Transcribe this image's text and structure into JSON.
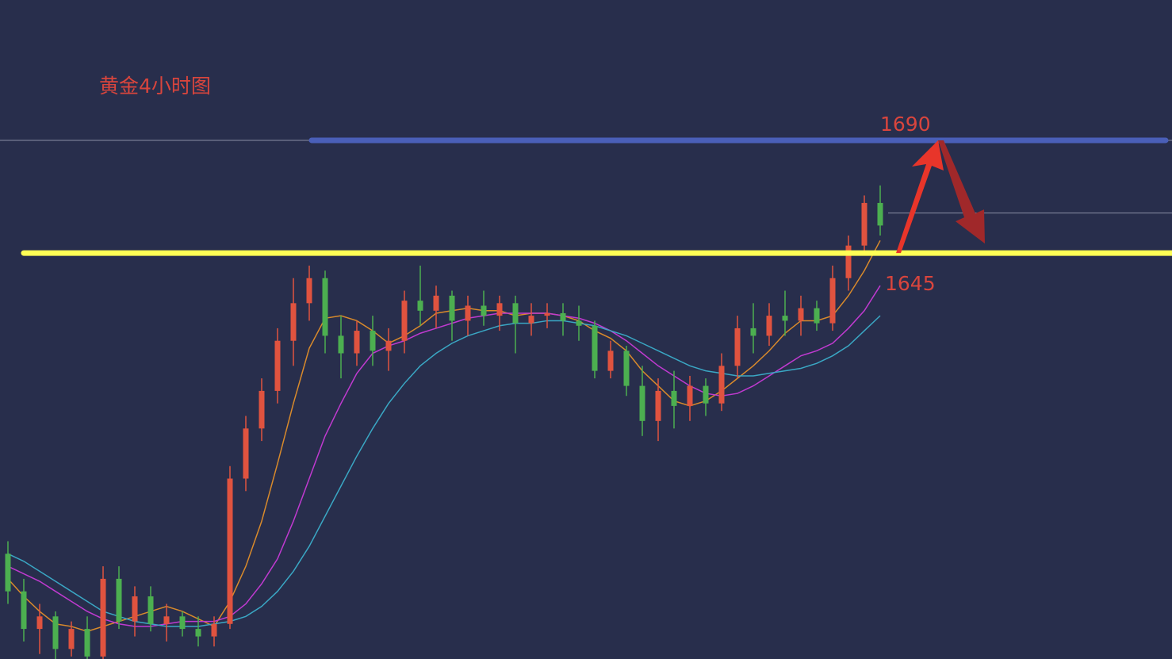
{
  "chart_data": {
    "type": "candlestick",
    "title": "黄金4小时图",
    "ohlc": [
      [
        1525,
        1530,
        1505,
        1510
      ],
      [
        1510,
        1515,
        1490,
        1495
      ],
      [
        1495,
        1505,
        1485,
        1500
      ],
      [
        1500,
        1502,
        1483,
        1487
      ],
      [
        1487,
        1498,
        1484,
        1495
      ],
      [
        1495,
        1500,
        1480,
        1484
      ],
      [
        1484,
        1520,
        1482,
        1515
      ],
      [
        1515,
        1520,
        1495,
        1498
      ],
      [
        1498,
        1512,
        1492,
        1508
      ],
      [
        1508,
        1512,
        1494,
        1497
      ],
      [
        1497,
        1505,
        1490,
        1500
      ],
      [
        1500,
        1502,
        1492,
        1495
      ],
      [
        1495,
        1500,
        1488,
        1492
      ],
      [
        1492,
        1500,
        1488,
        1497
      ],
      [
        1497,
        1560,
        1495,
        1555
      ],
      [
        1555,
        1580,
        1550,
        1575
      ],
      [
        1575,
        1595,
        1570,
        1590
      ],
      [
        1590,
        1615,
        1585,
        1610
      ],
      [
        1610,
        1635,
        1600,
        1625
      ],
      [
        1625,
        1640,
        1618,
        1635
      ],
      [
        1635,
        1638,
        1605,
        1612
      ],
      [
        1612,
        1620,
        1595,
        1605
      ],
      [
        1605,
        1618,
        1600,
        1614
      ],
      [
        1614,
        1620,
        1600,
        1606
      ],
      [
        1606,
        1615,
        1598,
        1610
      ],
      [
        1610,
        1630,
        1605,
        1626
      ],
      [
        1626,
        1640,
        1616,
        1622
      ],
      [
        1622,
        1632,
        1615,
        1628
      ],
      [
        1628,
        1630,
        1610,
        1618
      ],
      [
        1618,
        1628,
        1612,
        1624
      ],
      [
        1624,
        1630,
        1616,
        1620
      ],
      [
        1620,
        1628,
        1614,
        1625
      ],
      [
        1625,
        1628,
        1605,
        1617
      ],
      [
        1617,
        1625,
        1612,
        1620
      ],
      [
        1620,
        1625,
        1615,
        1621
      ],
      [
        1621,
        1625,
        1612,
        1618
      ],
      [
        1618,
        1624,
        1610,
        1616
      ],
      [
        1616,
        1618,
        1595,
        1598
      ],
      [
        1598,
        1610,
        1595,
        1606
      ],
      [
        1606,
        1608,
        1588,
        1592
      ],
      [
        1592,
        1600,
        1572,
        1578
      ],
      [
        1578,
        1595,
        1570,
        1590
      ],
      [
        1590,
        1598,
        1575,
        1584
      ],
      [
        1584,
        1596,
        1578,
        1592
      ],
      [
        1592,
        1595,
        1580,
        1585
      ],
      [
        1585,
        1605,
        1582,
        1600
      ],
      [
        1600,
        1620,
        1595,
        1615
      ],
      [
        1615,
        1625,
        1605,
        1612
      ],
      [
        1612,
        1625,
        1608,
        1620
      ],
      [
        1620,
        1630,
        1612,
        1618
      ],
      [
        1618,
        1628,
        1612,
        1623
      ],
      [
        1623,
        1626,
        1614,
        1617
      ],
      [
        1617,
        1640,
        1614,
        1635
      ],
      [
        1635,
        1652,
        1630,
        1648
      ],
      [
        1648,
        1668,
        1645,
        1665
      ],
      [
        1665,
        1672,
        1652,
        1656
      ]
    ],
    "up_color": "#e0533f",
    "down_color": "#4caf50",
    "series": [
      {
        "color": "#d98a2b",
        "values": [
          1515,
          1508,
          1502,
          1497,
          1496,
          1494,
          1496,
          1498,
          1500,
          1502,
          1504,
          1502,
          1499,
          1496,
          1506,
          1520,
          1538,
          1561,
          1585,
          1607,
          1619,
          1620,
          1618,
          1614,
          1609,
          1612,
          1616,
          1621,
          1622,
          1623,
          1622,
          1622,
          1620,
          1621,
          1621,
          1620,
          1618,
          1614,
          1611,
          1606,
          1598,
          1592,
          1586,
          1584,
          1586,
          1590,
          1595,
          1600,
          1606,
          1613,
          1618,
          1618,
          1620,
          1628,
          1638,
          1650
        ]
      },
      {
        "color": "#c03ad0",
        "values": [
          1520,
          1517,
          1514,
          1510,
          1506,
          1502,
          1499,
          1497,
          1496,
          1496,
          1497,
          1498,
          1498,
          1498,
          1500,
          1505,
          1513,
          1523,
          1538,
          1555,
          1572,
          1585,
          1597,
          1605,
          1608,
          1610,
          1613,
          1615,
          1617,
          1619,
          1620,
          1621,
          1621,
          1621,
          1621,
          1620,
          1619,
          1617,
          1614,
          1610,
          1605,
          1600,
          1596,
          1592,
          1589,
          1588,
          1589,
          1592,
          1596,
          1600,
          1604,
          1606,
          1609,
          1615,
          1622,
          1632
        ]
      },
      {
        "color": "#3aa7c4",
        "values": [
          1525,
          1522,
          1518,
          1514,
          1510,
          1506,
          1502,
          1500,
          1498,
          1497,
          1496,
          1496,
          1496,
          1497,
          1498,
          1500,
          1504,
          1510,
          1518,
          1528,
          1540,
          1552,
          1564,
          1575,
          1585,
          1593,
          1600,
          1605,
          1609,
          1612,
          1614,
          1616,
          1617,
          1617,
          1618,
          1618,
          1617,
          1616,
          1614,
          1612,
          1609,
          1606,
          1603,
          1600,
          1598,
          1597,
          1596,
          1596,
          1597,
          1598,
          1599,
          1601,
          1604,
          1608,
          1614,
          1620
        ]
      }
    ],
    "levels": [
      {
        "value": 1690,
        "color": "#4a5fb8"
      },
      {
        "value": 1645,
        "color": "#ffff55"
      }
    ],
    "price_line": 1661,
    "ylim": [
      1483,
      1746
    ]
  }
}
